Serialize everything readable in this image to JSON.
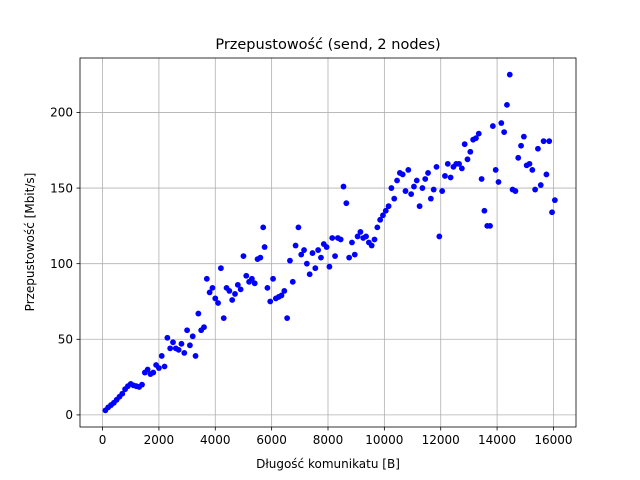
{
  "chart_data": {
    "type": "scatter",
    "title": "Przepustowość (send, 2 nodes)",
    "xlabel": "Długość komunikatu [B]",
    "ylabel": "Przepustowość [Mbit/s]",
    "xlim": [
      -800,
      16800
    ],
    "ylim": [
      -8,
      236
    ],
    "xticks": [
      0,
      2000,
      4000,
      6000,
      8000,
      10000,
      12000,
      14000,
      16000
    ],
    "xtick_labels": [
      "0",
      "2000",
      "4000",
      "6000",
      "8000",
      "10000",
      "12000",
      "14000",
      "16000"
    ],
    "yticks": [
      0,
      50,
      100,
      150,
      200
    ],
    "ytick_labels": [
      "0",
      "50",
      "100",
      "150",
      "200"
    ],
    "grid": true,
    "marker_color": "#0000ff",
    "series": [
      {
        "points": [
          [
            100,
            3
          ],
          [
            200,
            5
          ],
          [
            300,
            6.5
          ],
          [
            400,
            8
          ],
          [
            500,
            10
          ],
          [
            600,
            12
          ],
          [
            700,
            14
          ],
          [
            800,
            17
          ],
          [
            900,
            19
          ],
          [
            1000,
            20.5
          ],
          [
            1100,
            19.5
          ],
          [
            1200,
            19
          ],
          [
            1300,
            18.5
          ],
          [
            1400,
            20
          ],
          [
            1500,
            28
          ],
          [
            1600,
            30
          ],
          [
            1700,
            27
          ],
          [
            1800,
            28
          ],
          [
            1900,
            33
          ],
          [
            2000,
            31
          ],
          [
            2100,
            39
          ],
          [
            2200,
            32
          ],
          [
            2300,
            51
          ],
          [
            2400,
            44
          ],
          [
            2500,
            48
          ],
          [
            2600,
            44
          ],
          [
            2700,
            43
          ],
          [
            2800,
            47
          ],
          [
            2900,
            41
          ],
          [
            3000,
            56
          ],
          [
            3100,
            46
          ],
          [
            3200,
            52
          ],
          [
            3300,
            39
          ],
          [
            3400,
            67
          ],
          [
            3500,
            56
          ],
          [
            3600,
            58
          ],
          [
            3700,
            90
          ],
          [
            3800,
            81
          ],
          [
            3900,
            84
          ],
          [
            4000,
            77
          ],
          [
            4100,
            74
          ],
          [
            4200,
            97
          ],
          [
            4300,
            64
          ],
          [
            4400,
            84
          ],
          [
            4500,
            82
          ],
          [
            4600,
            76
          ],
          [
            4700,
            80
          ],
          [
            4800,
            86
          ],
          [
            4900,
            83
          ],
          [
            5000,
            105
          ],
          [
            5100,
            92
          ],
          [
            5200,
            88
          ],
          [
            5300,
            90
          ],
          [
            5400,
            87
          ],
          [
            5500,
            103
          ],
          [
            5600,
            104
          ],
          [
            5700,
            124
          ],
          [
            5750,
            111
          ],
          [
            5850,
            84
          ],
          [
            5950,
            75
          ],
          [
            6050,
            90
          ],
          [
            6150,
            77
          ],
          [
            6250,
            78
          ],
          [
            6350,
            79
          ],
          [
            6450,
            82
          ],
          [
            6550,
            64
          ],
          [
            6650,
            102
          ],
          [
            6750,
            88
          ],
          [
            6850,
            112
          ],
          [
            6950,
            124
          ],
          [
            7050,
            106
          ],
          [
            7150,
            109
          ],
          [
            7250,
            100
          ],
          [
            7350,
            93
          ],
          [
            7450,
            107
          ],
          [
            7550,
            97
          ],
          [
            7650,
            109
          ],
          [
            7750,
            104
          ],
          [
            7850,
            113
          ],
          [
            7950,
            111
          ],
          [
            8050,
            98
          ],
          [
            8150,
            117
          ],
          [
            8250,
            105
          ],
          [
            8350,
            117
          ],
          [
            8450,
            116
          ],
          [
            8550,
            151
          ],
          [
            8650,
            140
          ],
          [
            8750,
            104
          ],
          [
            8850,
            114
          ],
          [
            8950,
            106
          ],
          [
            9050,
            118
          ],
          [
            9150,
            121
          ],
          [
            9250,
            117
          ],
          [
            9350,
            118
          ],
          [
            9450,
            114
          ],
          [
            9550,
            112
          ],
          [
            9650,
            116
          ],
          [
            9750,
            124
          ],
          [
            9850,
            129
          ],
          [
            9950,
            132
          ],
          [
            10050,
            135
          ],
          [
            10150,
            138
          ],
          [
            10250,
            150
          ],
          [
            10350,
            143
          ],
          [
            10450,
            155
          ],
          [
            10550,
            160
          ],
          [
            10650,
            159
          ],
          [
            10750,
            148
          ],
          [
            10850,
            162
          ],
          [
            10950,
            146
          ],
          [
            11050,
            151
          ],
          [
            11150,
            155
          ],
          [
            11250,
            138
          ],
          [
            11350,
            150
          ],
          [
            11450,
            156
          ],
          [
            11550,
            160
          ],
          [
            11650,
            143
          ],
          [
            11750,
            149
          ],
          [
            11850,
            164
          ],
          [
            11950,
            118
          ],
          [
            12050,
            148
          ],
          [
            12150,
            158
          ],
          [
            12250,
            166
          ],
          [
            12350,
            157
          ],
          [
            12450,
            164
          ],
          [
            12550,
            166
          ],
          [
            12650,
            166
          ],
          [
            12750,
            163
          ],
          [
            12850,
            179
          ],
          [
            12950,
            169
          ],
          [
            13050,
            174
          ],
          [
            13150,
            182
          ],
          [
            13250,
            183
          ],
          [
            13350,
            186
          ],
          [
            13450,
            156
          ],
          [
            13550,
            135
          ],
          [
            13650,
            125
          ],
          [
            13750,
            125
          ],
          [
            13850,
            191
          ],
          [
            13950,
            162
          ],
          [
            14050,
            154
          ],
          [
            14150,
            193
          ],
          [
            14250,
            187
          ],
          [
            14350,
            205
          ],
          [
            14450,
            225
          ],
          [
            14550,
            149
          ],
          [
            14650,
            148
          ],
          [
            14750,
            170
          ],
          [
            14850,
            178
          ],
          [
            14950,
            184
          ],
          [
            15050,
            165
          ],
          [
            15150,
            166
          ],
          [
            15250,
            162
          ],
          [
            15350,
            149
          ],
          [
            15450,
            176
          ],
          [
            15550,
            152
          ],
          [
            15650,
            181
          ],
          [
            15750,
            159
          ],
          [
            15850,
            181
          ],
          [
            15950,
            134
          ],
          [
            16050,
            142
          ]
        ]
      }
    ]
  }
}
